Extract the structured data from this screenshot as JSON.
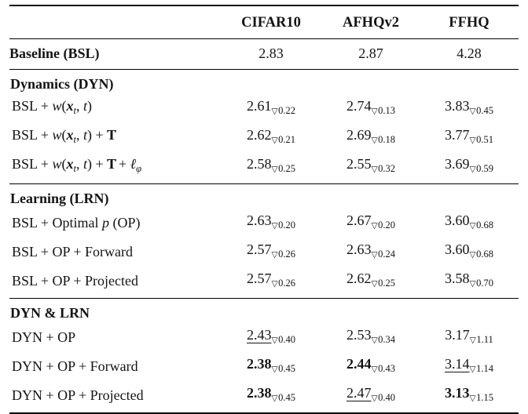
{
  "glyphs": {
    "triangle_down": "▽"
  },
  "columns": [
    "CIFAR10",
    "AFHQv2",
    "FFHQ"
  ],
  "baseline": {
    "label": "Baseline (BSL)",
    "values": [
      "2.83",
      "2.87",
      "4.28"
    ]
  },
  "sections": [
    {
      "title": "Dynamics (DYN)",
      "rows": [
        {
          "label": [
            {
              "t": "BSL + "
            },
            {
              "t": "w",
              "s": "i"
            },
            {
              "t": "("
            },
            {
              "t": "x",
              "s": "bi"
            },
            {
              "t": "t",
              "s": "msub"
            },
            {
              "t": ", "
            },
            {
              "t": "t",
              "s": "i"
            },
            {
              "t": ")"
            }
          ],
          "cells": [
            {
              "v": "2.61",
              "d": "0.22",
              "e": "plain"
            },
            {
              "v": "2.74",
              "d": "0.13",
              "e": "plain"
            },
            {
              "v": "3.83",
              "d": "0.45",
              "e": "plain"
            }
          ]
        },
        {
          "label": [
            {
              "t": "BSL + "
            },
            {
              "t": "w",
              "s": "i"
            },
            {
              "t": "("
            },
            {
              "t": "x",
              "s": "bi"
            },
            {
              "t": "t",
              "s": "msub"
            },
            {
              "t": ", "
            },
            {
              "t": "t",
              "s": "i"
            },
            {
              "t": ") + "
            },
            {
              "t": "T",
              "s": "bb"
            }
          ],
          "cells": [
            {
              "v": "2.62",
              "d": "0.21",
              "e": "plain"
            },
            {
              "v": "2.69",
              "d": "0.18",
              "e": "plain"
            },
            {
              "v": "3.77",
              "d": "0.51",
              "e": "plain"
            }
          ]
        },
        {
          "label": [
            {
              "t": "BSL + "
            },
            {
              "t": "w",
              "s": "i"
            },
            {
              "t": "("
            },
            {
              "t": "x",
              "s": "bi"
            },
            {
              "t": "t",
              "s": "msub"
            },
            {
              "t": ", "
            },
            {
              "t": "t",
              "s": "i"
            },
            {
              "t": ") + "
            },
            {
              "t": "T",
              "s": "bb"
            },
            {
              "t": " + "
            },
            {
              "t": "ℓ",
              "s": "i"
            },
            {
              "t": "φ",
              "s": "msub"
            }
          ],
          "cells": [
            {
              "v": "2.58",
              "d": "0.25",
              "e": "plain"
            },
            {
              "v": "2.55",
              "d": "0.32",
              "e": "plain"
            },
            {
              "v": "3.69",
              "d": "0.59",
              "e": "plain"
            }
          ]
        }
      ]
    },
    {
      "title": "Learning (LRN)",
      "rows": [
        {
          "label": [
            {
              "t": "BSL + Optimal "
            },
            {
              "t": "p",
              "s": "i"
            },
            {
              "t": " (OP)"
            }
          ],
          "cells": [
            {
              "v": "2.63",
              "d": "0.20",
              "e": "plain"
            },
            {
              "v": "2.67",
              "d": "0.20",
              "e": "plain"
            },
            {
              "v": "3.60",
              "d": "0.68",
              "e": "plain"
            }
          ]
        },
        {
          "label": [
            {
              "t": "BSL + OP + Forward"
            }
          ],
          "cells": [
            {
              "v": "2.57",
              "d": "0.26",
              "e": "plain"
            },
            {
              "v": "2.63",
              "d": "0.24",
              "e": "plain"
            },
            {
              "v": "3.60",
              "d": "0.68",
              "e": "plain"
            }
          ]
        },
        {
          "label": [
            {
              "t": "BSL + OP + Projected"
            }
          ],
          "cells": [
            {
              "v": "2.57",
              "d": "0.26",
              "e": "plain"
            },
            {
              "v": "2.62",
              "d": "0.25",
              "e": "plain"
            },
            {
              "v": "3.58",
              "d": "0.70",
              "e": "plain"
            }
          ]
        }
      ]
    },
    {
      "title": "DYN & LRN",
      "rows": [
        {
          "label": [
            {
              "t": "DYN + OP"
            }
          ],
          "cells": [
            {
              "v": "2.43",
              "d": "0.40",
              "e": "underline"
            },
            {
              "v": "2.53",
              "d": "0.34",
              "e": "plain"
            },
            {
              "v": "3.17",
              "d": "1.11",
              "e": "plain"
            }
          ]
        },
        {
          "label": [
            {
              "t": "DYN + OP + Forward"
            }
          ],
          "cells": [
            {
              "v": "2.38",
              "d": "0.45",
              "e": "bold"
            },
            {
              "v": "2.44",
              "d": "0.43",
              "e": "bold"
            },
            {
              "v": "3.14",
              "d": "1.14",
              "e": "underline"
            }
          ]
        },
        {
          "label": [
            {
              "t": "DYN + OP + Projected"
            }
          ],
          "cells": [
            {
              "v": "2.38",
              "d": "0.45",
              "e": "bold"
            },
            {
              "v": "2.47",
              "d": "0.40",
              "e": "underline"
            },
            {
              "v": "3.13",
              "d": "1.15",
              "e": "bold"
            }
          ]
        }
      ]
    }
  ]
}
